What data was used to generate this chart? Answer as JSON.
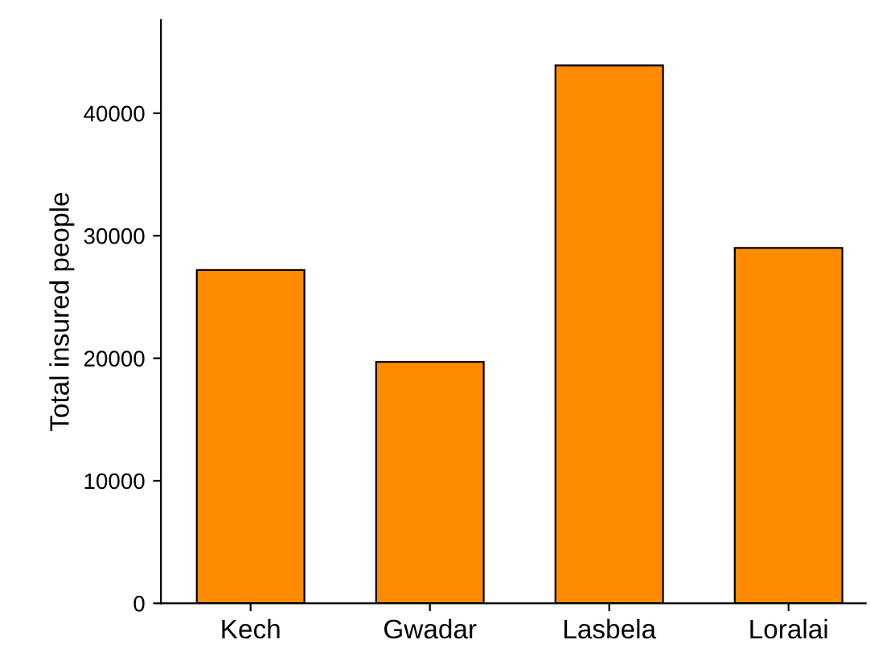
{
  "chart_data": {
    "type": "bar",
    "ylabel": "Total insured people",
    "categories": [
      "Kech",
      "Gwadar",
      "Lasbela",
      "Loralai"
    ],
    "values": [
      27200,
      19700,
      43900,
      29000
    ],
    "color": "#ff8c00",
    "ylim": [
      0,
      47600
    ],
    "yticks": [
      0,
      10000,
      20000,
      30000,
      40000
    ],
    "grid": false,
    "legend": false
  }
}
